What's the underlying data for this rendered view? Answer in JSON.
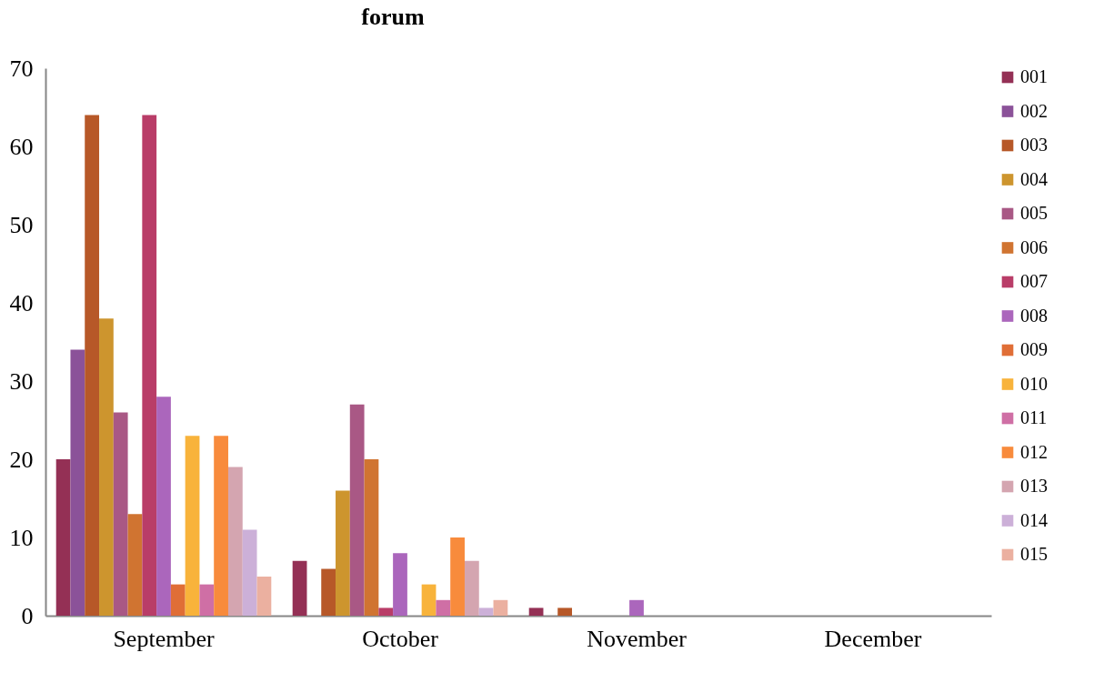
{
  "chart_data": {
    "type": "bar",
    "title": "forum",
    "categories": [
      "September",
      "October",
      "November",
      "December"
    ],
    "ylim": [
      0,
      70
    ],
    "yticks": [
      0,
      10,
      20,
      30,
      40,
      50,
      60,
      70
    ],
    "legend": "right",
    "series": [
      {
        "name": "001",
        "color": "#943055",
        "values": [
          20,
          7,
          1,
          0
        ]
      },
      {
        "name": "002",
        "color": "#8b5299",
        "values": [
          34,
          0,
          0,
          0
        ]
      },
      {
        "name": "003",
        "color": "#b75828",
        "values": [
          64,
          6,
          1,
          0
        ]
      },
      {
        "name": "004",
        "color": "#cd952e",
        "values": [
          38,
          16,
          0,
          0
        ]
      },
      {
        "name": "005",
        "color": "#a95885",
        "values": [
          26,
          27,
          0,
          0
        ]
      },
      {
        "name": "006",
        "color": "#d07431",
        "values": [
          13,
          20,
          0,
          0
        ]
      },
      {
        "name": "007",
        "color": "#b93d68",
        "values": [
          64,
          1,
          0,
          0
        ]
      },
      {
        "name": "008",
        "color": "#ab66bc",
        "values": [
          28,
          8,
          2,
          0
        ]
      },
      {
        "name": "009",
        "color": "#e06e36",
        "values": [
          4,
          0,
          0,
          0
        ]
      },
      {
        "name": "010",
        "color": "#f8b33b",
        "values": [
          23,
          4,
          0,
          0
        ]
      },
      {
        "name": "011",
        "color": "#cf6fa5",
        "values": [
          4,
          2,
          0,
          0
        ]
      },
      {
        "name": "012",
        "color": "#f88b3c",
        "values": [
          23,
          10,
          0,
          0
        ]
      },
      {
        "name": "013",
        "color": "#d4a5b0",
        "values": [
          19,
          7,
          0,
          0
        ]
      },
      {
        "name": "014",
        "color": "#ccb0d8",
        "values": [
          11,
          1,
          0,
          0
        ]
      },
      {
        "name": "015",
        "color": "#ebb0a0",
        "values": [
          5,
          2,
          0,
          0
        ]
      }
    ]
  }
}
